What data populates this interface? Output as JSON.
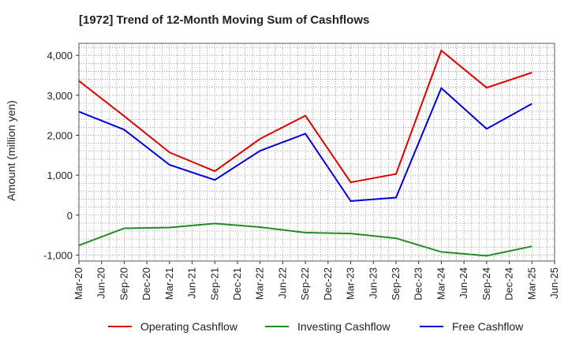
{
  "chart_data": {
    "type": "line",
    "title": "[1972]  Trend of 12-Month Moving Sum of Cashflows",
    "xlabel": "",
    "ylabel": "Amount (million yen)",
    "ylim": [
      -1150,
      4300
    ],
    "yticks": [
      -1000,
      0,
      1000,
      2000,
      3000,
      4000
    ],
    "ytick_labels": [
      "-1,000",
      "0",
      "1,000",
      "2,000",
      "3,000",
      "4,000"
    ],
    "x_ticks": [
      "Mar-20",
      "Jun-20",
      "Sep-20",
      "Dec-20",
      "Mar-21",
      "Jun-21",
      "Sep-21",
      "Dec-21",
      "Mar-22",
      "Jun-22",
      "Sep-22",
      "Dec-22",
      "Mar-23",
      "Jun-23",
      "Sep-23",
      "Dec-23",
      "Mar-24",
      "Jun-24",
      "Sep-24",
      "Dec-24",
      "Mar-25",
      "Jun-25"
    ],
    "x_points": [
      "Mar-20",
      "Sep-20",
      "Mar-21",
      "Sep-21",
      "Mar-22",
      "Sep-22",
      "Mar-23",
      "Sep-23",
      "Mar-24",
      "Sep-24",
      "Mar-25"
    ],
    "grid": true,
    "legend_position": "bottom",
    "series": [
      {
        "name": "Operating Cashflow",
        "color": "#e00000",
        "values": [
          3360,
          2480,
          1570,
          1100,
          1910,
          2490,
          820,
          1030,
          4120,
          3190,
          3570
        ]
      },
      {
        "name": "Investing Cashflow",
        "color": "#228b22",
        "values": [
          -760,
          -330,
          -310,
          -210,
          -300,
          -440,
          -460,
          -580,
          -920,
          -1020,
          -780
        ]
      },
      {
        "name": "Free Cashflow",
        "color": "#0000dd",
        "values": [
          2590,
          2140,
          1260,
          880,
          1610,
          2040,
          350,
          440,
          3180,
          2160,
          2790
        ]
      }
    ]
  }
}
